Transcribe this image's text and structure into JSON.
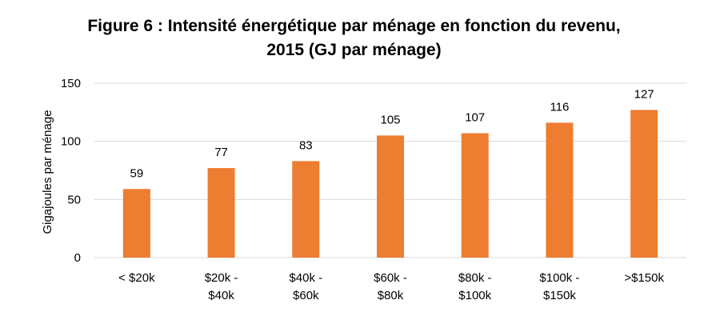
{
  "chart_data": {
    "type": "bar",
    "title": [
      "Figure 6 : Intensité énergétique par ménage en fonction du revenu,",
      "2015 (GJ par ménage)"
    ],
    "xlabel": "",
    "ylabel": "Gigajoules par ménage",
    "ylim": [
      0,
      150
    ],
    "yticks": [
      "0",
      "50",
      "100",
      "150"
    ],
    "categories": [
      [
        "< $20k"
      ],
      [
        "$20k -",
        "$40k"
      ],
      [
        "$40k -",
        "$60k"
      ],
      [
        "$60k -",
        "$80k"
      ],
      [
        "$80k -",
        "$100k"
      ],
      [
        "$100k -",
        "$150k"
      ],
      [
        ">$150k"
      ]
    ],
    "values": [
      59,
      77,
      83,
      105,
      107,
      116,
      127
    ],
    "data_labels": [
      "59",
      "77",
      "83",
      "105",
      "107",
      "116",
      "127"
    ],
    "bar_color": "#ED7D31",
    "grid_color": "#D9D9D9",
    "grid": true,
    "legend": "none"
  }
}
